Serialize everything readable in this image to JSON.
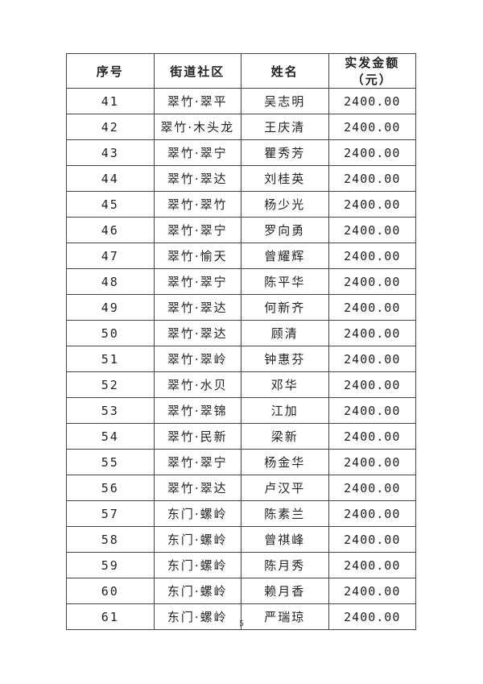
{
  "table": {
    "headers": [
      "序号",
      "街道社区",
      "姓名",
      "实发金额（元）"
    ],
    "rows": [
      [
        "41",
        "翠竹·翠平",
        "吴志明",
        "2400.00"
      ],
      [
        "42",
        "翠竹·木头龙",
        "王庆清",
        "2400.00"
      ],
      [
        "43",
        "翠竹·翠宁",
        "瞿秀芳",
        "2400.00"
      ],
      [
        "44",
        "翠竹·翠达",
        "刘桂英",
        "2400.00"
      ],
      [
        "45",
        "翠竹·翠竹",
        "杨少光",
        "2400.00"
      ],
      [
        "46",
        "翠竹·翠宁",
        "罗向勇",
        "2400.00"
      ],
      [
        "47",
        "翠竹·愉天",
        "曾耀辉",
        "2400.00"
      ],
      [
        "48",
        "翠竹·翠宁",
        "陈平华",
        "2400.00"
      ],
      [
        "49",
        "翠竹·翠达",
        "何新齐",
        "2400.00"
      ],
      [
        "50",
        "翠竹·翠达",
        "顾清",
        "2400.00"
      ],
      [
        "51",
        "翠竹·翠岭",
        "钟惠芬",
        "2400.00"
      ],
      [
        "52",
        "翠竹·水贝",
        "邓华",
        "2400.00"
      ],
      [
        "53",
        "翠竹·翠锦",
        "江加",
        "2400.00"
      ],
      [
        "54",
        "翠竹·民新",
        "梁新",
        "2400.00"
      ],
      [
        "55",
        "翠竹·翠宁",
        "杨金华",
        "2400.00"
      ],
      [
        "56",
        "翠竹·翠达",
        "卢汉平",
        "2400.00"
      ],
      [
        "57",
        "东门·螺岭",
        "陈素兰",
        "2400.00"
      ],
      [
        "58",
        "东门·螺岭",
        "曾祺峰",
        "2400.00"
      ],
      [
        "59",
        "东门·螺岭",
        "陈月秀",
        "2400.00"
      ],
      [
        "60",
        "东门·螺岭",
        "赖月香",
        "2400.00"
      ],
      [
        "61",
        "东门·螺岭",
        "严瑞琼",
        "2400.00"
      ]
    ]
  },
  "page_number": "5"
}
